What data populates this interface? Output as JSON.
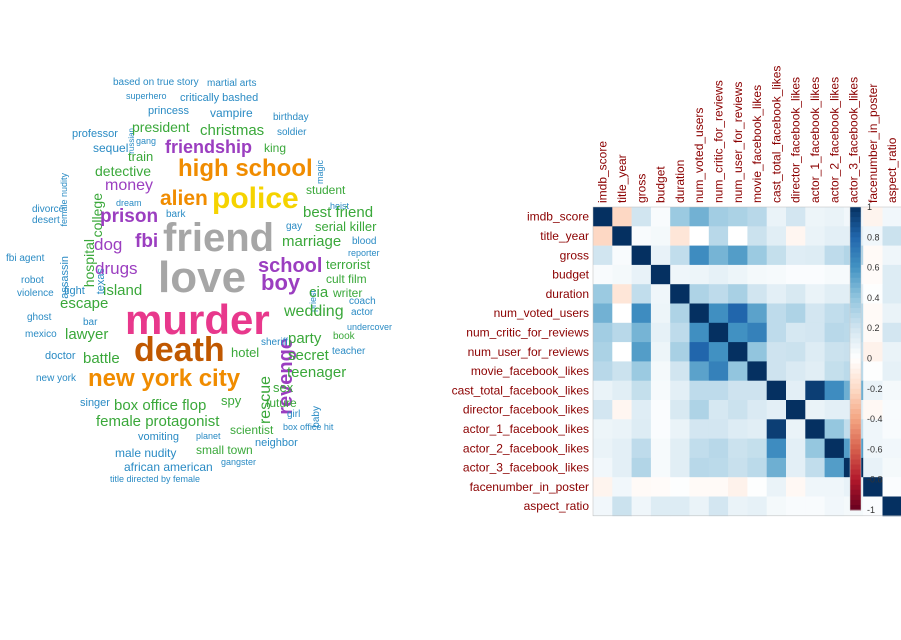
{
  "chart_data": [
    {
      "type": "wordcloud",
      "colors": {
        "red": "#e4312b",
        "pink": "#e8388c",
        "orange": "#f08c00",
        "yellow": "#f5d300",
        "gray": "#a6a6a6",
        "brown": "#c05800",
        "purple": "#9b3ec0",
        "green": "#3aa83a",
        "blue": "#2a8bc4"
      },
      "words": [
        {
          "text": "based on true story",
          "color": "blue"
        },
        {
          "text": "martial arts",
          "color": "blue"
        },
        {
          "text": "superhero",
          "color": "blue"
        },
        {
          "text": "critically bashed",
          "color": "blue"
        },
        {
          "text": "russian",
          "color": "blue"
        },
        {
          "text": "princess",
          "color": "blue"
        },
        {
          "text": "vampire",
          "color": "blue"
        },
        {
          "text": "birthday",
          "color": "blue"
        },
        {
          "text": "president",
          "color": "green"
        },
        {
          "text": "christmas",
          "color": "green"
        },
        {
          "text": "professor",
          "color": "blue"
        },
        {
          "text": "gang",
          "color": "blue"
        },
        {
          "text": "soldier",
          "color": "blue"
        },
        {
          "text": "female nudity",
          "color": "blue"
        },
        {
          "text": "sequel",
          "color": "blue"
        },
        {
          "text": "friendship",
          "color": "purple"
        },
        {
          "text": "king",
          "color": "green"
        },
        {
          "text": "magic",
          "color": "blue"
        },
        {
          "text": "train",
          "color": "green"
        },
        {
          "text": "high school",
          "color": "orange"
        },
        {
          "text": "detective",
          "color": "green"
        },
        {
          "text": "college",
          "color": "green"
        },
        {
          "text": "money",
          "color": "purple"
        },
        {
          "text": "student",
          "color": "green"
        },
        {
          "text": "alien",
          "color": "orange"
        },
        {
          "text": "police",
          "color": "yellow"
        },
        {
          "text": "dream",
          "color": "blue"
        },
        {
          "text": "heist",
          "color": "blue"
        },
        {
          "text": "divorce",
          "color": "blue"
        },
        {
          "text": "desert",
          "color": "blue"
        },
        {
          "text": "prison",
          "color": "purple"
        },
        {
          "text": "bark",
          "color": "blue"
        },
        {
          "text": "best friend",
          "color": "green"
        },
        {
          "text": "serial killer",
          "color": "green"
        },
        {
          "text": "assassin",
          "color": "blue"
        },
        {
          "text": "hospital",
          "color": "green"
        },
        {
          "text": "dog",
          "color": "purple"
        },
        {
          "text": "fbi",
          "color": "purple"
        },
        {
          "text": "friend",
          "color": "gray"
        },
        {
          "text": "gay",
          "color": "blue"
        },
        {
          "text": "marriage",
          "color": "green"
        },
        {
          "text": "blood",
          "color": "blue"
        },
        {
          "text": "fbi agent",
          "color": "blue"
        },
        {
          "text": "texas",
          "color": "blue"
        },
        {
          "text": "reporter",
          "color": "blue"
        },
        {
          "text": "robot",
          "color": "blue"
        },
        {
          "text": "drugs",
          "color": "purple"
        },
        {
          "text": "school",
          "color": "purple"
        },
        {
          "text": "terrorist",
          "color": "green"
        },
        {
          "text": "love",
          "color": "gray"
        },
        {
          "text": "priest",
          "color": "blue"
        },
        {
          "text": "violence",
          "color": "blue"
        },
        {
          "text": "fight",
          "color": "blue"
        },
        {
          "text": "island",
          "color": "green"
        },
        {
          "text": "boy",
          "color": "purple"
        },
        {
          "text": "cult film",
          "color": "green"
        },
        {
          "text": "cia",
          "color": "green"
        },
        {
          "text": "writer",
          "color": "green"
        },
        {
          "text": "escape",
          "color": "green"
        },
        {
          "text": "coach",
          "color": "blue"
        },
        {
          "text": "ghost",
          "color": "blue"
        },
        {
          "text": "murder",
          "color": "pink"
        },
        {
          "text": "wedding",
          "color": "green"
        },
        {
          "text": "actor",
          "color": "blue"
        },
        {
          "text": "bar",
          "color": "blue"
        },
        {
          "text": "undercover",
          "color": "blue"
        },
        {
          "text": "mexico",
          "color": "blue"
        },
        {
          "text": "lawyer",
          "color": "green"
        },
        {
          "text": "revenge",
          "color": "purple"
        },
        {
          "text": "party",
          "color": "green"
        },
        {
          "text": "book",
          "color": "green"
        },
        {
          "text": "sheriff",
          "color": "blue"
        },
        {
          "text": "death",
          "color": "brown"
        },
        {
          "text": "hotel",
          "color": "green"
        },
        {
          "text": "teacher",
          "color": "blue"
        },
        {
          "text": "doctor",
          "color": "blue"
        },
        {
          "text": "battle",
          "color": "green"
        },
        {
          "text": "secret",
          "color": "green"
        },
        {
          "text": "rescue",
          "color": "green"
        },
        {
          "text": "teenager",
          "color": "green"
        },
        {
          "text": "new york city",
          "color": "orange"
        },
        {
          "text": "new york",
          "color": "blue"
        },
        {
          "text": "sex",
          "color": "green"
        },
        {
          "text": "baby",
          "color": "blue"
        },
        {
          "text": "singer",
          "color": "blue"
        },
        {
          "text": "box office flop",
          "color": "green"
        },
        {
          "text": "spy",
          "color": "green"
        },
        {
          "text": "future",
          "color": "green"
        },
        {
          "text": "girl",
          "color": "blue"
        },
        {
          "text": "female protagonist",
          "color": "green"
        },
        {
          "text": "scientist",
          "color": "green"
        },
        {
          "text": "box office hit",
          "color": "blue"
        },
        {
          "text": "vomiting",
          "color": "blue"
        },
        {
          "text": "planet",
          "color": "blue"
        },
        {
          "text": "neighbor",
          "color": "blue"
        },
        {
          "text": "male nudity",
          "color": "blue"
        },
        {
          "text": "small town",
          "color": "green"
        },
        {
          "text": "african american",
          "color": "blue"
        },
        {
          "text": "gangster",
          "color": "blue"
        },
        {
          "text": "title directed by female",
          "color": "blue"
        }
      ]
    },
    {
      "type": "heatmap",
      "variables": [
        "imdb_score",
        "title_year",
        "gross",
        "budget",
        "duration",
        "num_voted_users",
        "num_critic_for_reviews",
        "num_user_for_reviews",
        "movie_facebook_likes",
        "cast_total_facebook_likes",
        "director_facebook_likes",
        "actor_1_facebook_likes",
        "actor_2_facebook_likes",
        "actor_3_facebook_likes",
        "facenumber_in_poster",
        "aspect_ratio"
      ],
      "matrix": [
        [
          1,
          -0.21,
          0.2,
          0.03,
          0.37,
          0.48,
          0.35,
          0.32,
          0.28,
          0.09,
          0.19,
          0.08,
          0.09,
          0.06,
          -0.06,
          0.06
        ],
        [
          -0.21,
          1,
          0.03,
          0.05,
          -0.14,
          0.0,
          0.28,
          0.0,
          0.22,
          0.13,
          -0.05,
          0.09,
          0.12,
          0.12,
          0.06,
          0.22
        ],
        [
          0.2,
          0.03,
          1,
          0.1,
          0.25,
          0.63,
          0.47,
          0.56,
          0.37,
          0.24,
          0.14,
          0.15,
          0.26,
          0.3,
          -0.03,
          0.07
        ],
        [
          0.03,
          0.05,
          0.1,
          1,
          0.07,
          0.08,
          0.11,
          0.08,
          0.05,
          0.04,
          0.02,
          0.02,
          0.04,
          0.04,
          -0.02,
          0.15
        ],
        [
          0.37,
          -0.14,
          0.25,
          0.07,
          1,
          0.31,
          0.26,
          0.33,
          0.2,
          0.12,
          0.17,
          0.09,
          0.13,
          0.13,
          0.01,
          0.15
        ],
        [
          0.48,
          0.0,
          0.63,
          0.08,
          0.31,
          1,
          0.62,
          0.8,
          0.54,
          0.26,
          0.31,
          0.19,
          0.25,
          0.28,
          -0.03,
          0.09
        ],
        [
          0.35,
          0.28,
          0.47,
          0.11,
          0.26,
          0.62,
          1,
          0.61,
          0.68,
          0.26,
          0.18,
          0.19,
          0.28,
          0.27,
          -0.03,
          0.19
        ],
        [
          0.32,
          0.0,
          0.56,
          0.08,
          0.33,
          0.8,
          0.61,
          1,
          0.4,
          0.21,
          0.22,
          0.15,
          0.22,
          0.23,
          -0.07,
          0.09
        ],
        [
          0.28,
          0.22,
          0.37,
          0.05,
          0.2,
          0.54,
          0.68,
          0.4,
          1,
          0.21,
          0.16,
          0.13,
          0.24,
          0.27,
          0.01,
          0.11
        ],
        [
          0.09,
          0.13,
          0.24,
          0.04,
          0.12,
          0.26,
          0.26,
          0.21,
          0.21,
          1,
          0.12,
          0.95,
          0.63,
          0.49,
          0.09,
          0.05
        ],
        [
          0.19,
          -0.05,
          0.14,
          0.02,
          0.17,
          0.31,
          0.18,
          0.22,
          0.16,
          0.12,
          1,
          0.09,
          0.12,
          0.12,
          -0.04,
          0.03
        ],
        [
          0.08,
          0.09,
          0.15,
          0.02,
          0.09,
          0.19,
          0.19,
          0.15,
          0.13,
          0.95,
          0.09,
          1,
          0.39,
          0.25,
          0.07,
          0.03
        ],
        [
          0.09,
          0.12,
          0.26,
          0.04,
          0.13,
          0.25,
          0.28,
          0.22,
          0.24,
          0.63,
          0.12,
          0.39,
          1,
          0.56,
          0.07,
          0.06
        ],
        [
          0.06,
          0.12,
          0.3,
          0.04,
          0.13,
          0.28,
          0.27,
          0.23,
          0.27,
          0.49,
          0.12,
          0.25,
          0.56,
          1,
          0.1,
          0.05
        ],
        [
          -0.06,
          0.06,
          -0.03,
          -0.02,
          0.01,
          -0.03,
          -0.03,
          -0.07,
          0.01,
          0.09,
          -0.04,
          0.07,
          0.07,
          0.1,
          1,
          0.02
        ],
        [
          0.06,
          0.22,
          0.07,
          0.15,
          0.15,
          0.09,
          0.19,
          0.09,
          0.11,
          0.05,
          0.03,
          0.03,
          0.06,
          0.05,
          0.02,
          1
        ]
      ],
      "colorbar": {
        "ticks": [
          "1",
          "0.8",
          "0.6",
          "0.4",
          "0.2",
          "0",
          "-0.2",
          "-0.4",
          "-0.6",
          "-0.8",
          "-1"
        ],
        "range": [
          -1,
          1
        ],
        "positive_color": "#053061",
        "negative_color": "#67001f"
      },
      "label_color": "#8b0000"
    }
  ]
}
